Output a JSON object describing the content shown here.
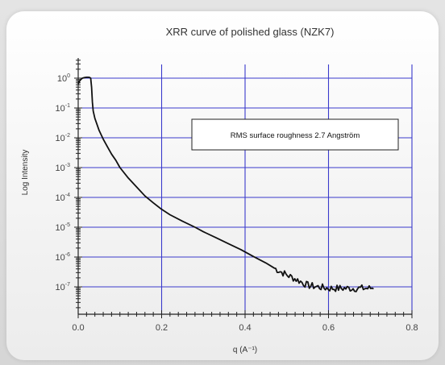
{
  "chart_data": {
    "type": "line",
    "title": "XRR curve of polished glass (NZK7)",
    "xlabel": "q (A⁻¹)",
    "ylabel": "Log Intensity",
    "xlim": [
      0.0,
      0.8
    ],
    "ylim_log10": [
      -7.5,
      0.3
    ],
    "y_scale": "log",
    "grid": true,
    "x_ticks": [
      {
        "value": 0.0,
        "label": "0.0"
      },
      {
        "value": 0.2,
        "label": "0.2"
      },
      {
        "value": 0.4,
        "label": "0.4"
      },
      {
        "value": 0.6,
        "label": "0.6"
      },
      {
        "value": 0.8,
        "label": "0.8"
      }
    ],
    "y_ticks": [
      {
        "exp": 0,
        "base": "10",
        "sup": "0"
      },
      {
        "exp": -1,
        "base": "10",
        "sup": "-1"
      },
      {
        "exp": -2,
        "base": "10",
        "sup": "-2"
      },
      {
        "exp": -3,
        "base": "10",
        "sup": "-3"
      },
      {
        "exp": -4,
        "base": "10",
        "sup": "-4"
      },
      {
        "exp": -5,
        "base": "10",
        "sup": "-5"
      },
      {
        "exp": -6,
        "base": "10",
        "sup": "-6"
      },
      {
        "exp": -7,
        "base": "10",
        "sup": "-7"
      }
    ],
    "annotation": "RMS surface roughness  2.7  Angström",
    "series": [
      {
        "color": "#111111",
        "noise_start_x": 0.47,
        "noise_amplitude_log10": 0.12,
        "points": [
          [
            0.0,
            -0.2
          ],
          [
            0.003,
            -0.1
          ],
          [
            0.006,
            -0.05
          ],
          [
            0.01,
            0.0
          ],
          [
            0.015,
            0.02
          ],
          [
            0.02,
            0.03
          ],
          [
            0.025,
            0.03
          ],
          [
            0.028,
            0.02
          ],
          [
            0.03,
            0.0
          ],
          [
            0.032,
            -0.3
          ],
          [
            0.034,
            -0.8
          ],
          [
            0.036,
            -1.1
          ],
          [
            0.04,
            -1.35
          ],
          [
            0.045,
            -1.55
          ],
          [
            0.05,
            -1.75
          ],
          [
            0.06,
            -2.05
          ],
          [
            0.07,
            -2.3
          ],
          [
            0.08,
            -2.55
          ],
          [
            0.09,
            -2.75
          ],
          [
            0.1,
            -3.0
          ],
          [
            0.12,
            -3.35
          ],
          [
            0.14,
            -3.65
          ],
          [
            0.16,
            -3.95
          ],
          [
            0.18,
            -4.18
          ],
          [
            0.2,
            -4.4
          ],
          [
            0.22,
            -4.58
          ],
          [
            0.25,
            -4.8
          ],
          [
            0.28,
            -5.0
          ],
          [
            0.3,
            -5.15
          ],
          [
            0.33,
            -5.35
          ],
          [
            0.36,
            -5.55
          ],
          [
            0.39,
            -5.75
          ],
          [
            0.42,
            -5.98
          ],
          [
            0.45,
            -6.2
          ],
          [
            0.48,
            -6.45
          ],
          [
            0.5,
            -6.6
          ],
          [
            0.53,
            -6.8
          ],
          [
            0.55,
            -6.95
          ],
          [
            0.6,
            -7.05
          ],
          [
            0.65,
            -7.05
          ],
          [
            0.7,
            -7.05
          ],
          [
            0.71,
            -7.0
          ]
        ]
      }
    ]
  }
}
